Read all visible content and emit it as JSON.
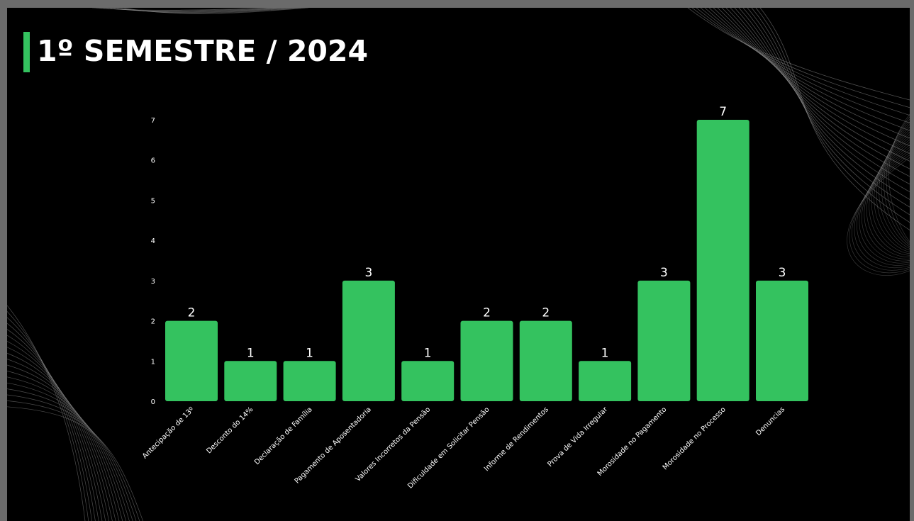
{
  "slide": {
    "title": "1º SEMESTRE / 2024"
  },
  "colors": {
    "background": "#000000",
    "accent": "#34c25f",
    "bar": "#34c25f",
    "text": "#ffffff",
    "frame": "#6b6b6b"
  },
  "chart_data": {
    "type": "bar",
    "title": "",
    "xlabel": "",
    "ylabel": "",
    "ylim": [
      0,
      7
    ],
    "yticks": [
      0,
      1,
      2,
      3,
      4,
      5,
      6,
      7
    ],
    "grid": false,
    "categories": [
      "Antecipação de 13º",
      "Desconto do 14%",
      "Declaração de Família",
      "Pagamento de Aposentadoria",
      "Valores Incorretos da Pensão",
      "Dificuldade em Solicitar Pensão",
      "Informe de Rendimentos",
      "Prova de Vida Irregular",
      "Morosidade no Pagamento",
      "Morosidade no Processo",
      "Denuncias"
    ],
    "values": [
      2,
      1,
      1,
      3,
      1,
      2,
      2,
      1,
      3,
      7,
      3
    ]
  }
}
